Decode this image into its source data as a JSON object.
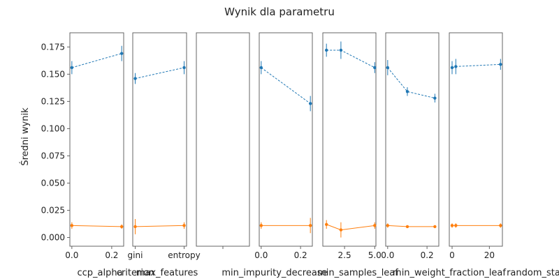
{
  "chart_data": {
    "type": "line",
    "title": "Wynik dla parametru",
    "ylabel": "Średni wynik",
    "ylim": [
      -0.008,
      0.188
    ],
    "yticks": [
      0.0,
      0.025,
      0.05,
      0.075,
      0.1,
      0.125,
      0.15,
      0.175
    ],
    "ytick_labels": [
      "0.000",
      "0.025",
      "0.050",
      "0.075",
      "0.100",
      "0.125",
      "0.150",
      "0.175"
    ],
    "colors": {
      "series1": "#1f77b4",
      "series2": "#ff7f0e"
    },
    "panels": [
      {
        "xlabel": "ccp_alpha",
        "xlim": [
          -0.01,
          0.26
        ],
        "xticks": [
          0.0,
          0.2
        ],
        "xtick_labels": [
          "0.0",
          "0.2"
        ],
        "series": [
          {
            "x": [
              0.0,
              0.25
            ],
            "y": [
              0.156,
              0.169
            ],
            "err": [
              0.006,
              0.007
            ]
          },
          {
            "x": [
              0.0,
              0.25
            ],
            "y": [
              0.011,
              0.01
            ],
            "err": [
              0.003,
              0.002
            ]
          }
        ]
      },
      {
        "xlabel": "criterion",
        "xlim": [
          -0.05,
          1.05
        ],
        "xticks": [
          0.0,
          1.0
        ],
        "xtick_labels": [
          "gini",
          "entropy"
        ],
        "series": [
          {
            "x": [
              0.0,
              1.0
            ],
            "y": [
              0.146,
              0.156
            ],
            "err": [
              0.005,
              0.006
            ]
          },
          {
            "x": [
              0.0,
              1.0
            ],
            "y": [
              0.01,
              0.011
            ],
            "err": [
              0.007,
              0.003
            ]
          }
        ]
      },
      {
        "xlabel": "max_features",
        "xlim": [
          -0.05,
          1.05
        ],
        "xticks": [
          0.5
        ],
        "xtick_labels": [
          ""
        ],
        "series": []
      },
      {
        "xlabel": "min_impurity_decrease",
        "xlim": [
          -0.01,
          0.26
        ],
        "xticks": [
          0.0,
          0.2
        ],
        "xtick_labels": [
          "0.0",
          "0.2"
        ],
        "series": [
          {
            "x": [
              0.0,
              0.25
            ],
            "y": [
              0.156,
              0.123
            ],
            "err": [
              0.006,
              0.007
            ]
          },
          {
            "x": [
              0.0,
              0.25
            ],
            "y": [
              0.011,
              0.011
            ],
            "err": [
              0.003,
              0.007
            ]
          }
        ]
      },
      {
        "xlabel": "min_samples_leaf",
        "xlim": [
          0.7,
          5.1
        ],
        "xticks": [
          2.5,
          5.0
        ],
        "xtick_labels": [
          "2.5",
          "5.0"
        ],
        "series": [
          {
            "x": [
              1,
              2.2,
              5
            ],
            "y": [
              0.172,
              0.172,
              0.156
            ],
            "err": [
              0.006,
              0.008,
              0.005
            ]
          },
          {
            "x": [
              1,
              2.2,
              5
            ],
            "y": [
              0.012,
              0.007,
              0.011
            ],
            "err": [
              0.004,
              0.007,
              0.003
            ]
          }
        ]
      },
      {
        "xlabel": "min_weight_fraction_leaf",
        "xlim": [
          -0.01,
          0.26
        ],
        "xticks": [
          0.0,
          0.2
        ],
        "xtick_labels": [
          "0.0",
          "0.2"
        ],
        "series": [
          {
            "x": [
              0.0,
              0.1,
              0.24
            ],
            "y": [
              0.156,
              0.134,
              0.128
            ],
            "err": [
              0.007,
              0.004,
              0.004
            ]
          },
          {
            "x": [
              0.0,
              0.1,
              0.24
            ],
            "y": [
              0.011,
              0.01,
              0.01
            ],
            "err": [
              0.002,
              0.001,
              0.001
            ]
          }
        ]
      },
      {
        "xlabel": "random_state",
        "xlim": [
          -1.5,
          27
        ],
        "xticks": [
          0,
          20
        ],
        "xtick_labels": [
          "0",
          "20"
        ],
        "series": [
          {
            "x": [
              0,
              2,
              26
            ],
            "y": [
              0.156,
              0.157,
              0.159
            ],
            "err": [
              0.006,
              0.007,
              0.005
            ]
          },
          {
            "x": [
              0,
              2,
              26
            ],
            "y": [
              0.011,
              0.011,
              0.011
            ],
            "err": [
              0.002,
              0.002,
              0.002
            ]
          }
        ]
      }
    ]
  }
}
